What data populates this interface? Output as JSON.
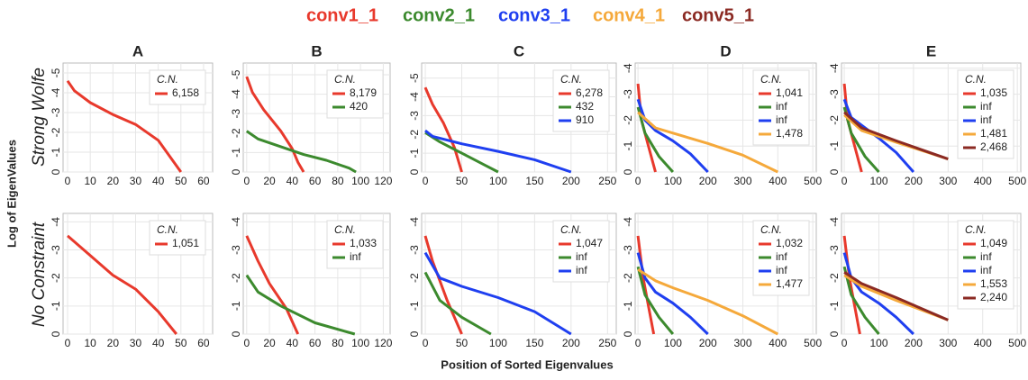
{
  "figure": {
    "legend": [
      {
        "name": "conv1_1",
        "color": "#e8392c"
      },
      {
        "name": "conv2_1",
        "color": "#3c8a2e"
      },
      {
        "name": "conv3_1",
        "color": "#1f3ff0"
      },
      {
        "name": "conv4_1",
        "color": "#f5a93b"
      },
      {
        "name": "conv5_1",
        "color": "#8b2a23"
      }
    ],
    "rows": [
      "Strong Wolfe",
      "No Constraint"
    ],
    "ylabel": "Log of EigenValues",
    "xlabel": "Position of Sorted Eigenvalues"
  },
  "chart_data": [
    {
      "type": "line",
      "title": "A",
      "grid": true,
      "legend_title": "C.N.",
      "xlim": [
        -2,
        64
      ],
      "ylim": [
        0,
        -5.5
      ],
      "xticks": [
        0,
        10,
        20,
        30,
        40,
        50,
        60
      ],
      "yticks": [
        0,
        -1,
        -2,
        -3,
        -4,
        -5
      ],
      "series": [
        {
          "color": "#e8392c",
          "label": "6,158",
          "x": [
            0,
            3,
            10,
            20,
            30,
            40,
            45,
            50
          ],
          "values": [
            -4.6,
            -4.1,
            -3.5,
            -2.9,
            -2.4,
            -1.6,
            -0.8,
            0
          ]
        }
      ]
    },
    {
      "type": "line",
      "title": "B",
      "grid": true,
      "legend_title": "C.N.",
      "xlim": [
        -3,
        126
      ],
      "ylim": [
        0,
        -5.6
      ],
      "xticks": [
        0,
        20,
        40,
        60,
        80,
        100,
        120
      ],
      "yticks": [
        0,
        -1,
        -2,
        -3,
        -4,
        -5
      ],
      "series": [
        {
          "color": "#e8392c",
          "label": "8,179",
          "x": [
            0,
            5,
            15,
            30,
            40,
            45,
            50
          ],
          "values": [
            -4.9,
            -4.1,
            -3.2,
            -2.1,
            -1.2,
            -0.5,
            0
          ]
        },
        {
          "color": "#3c8a2e",
          "label": "420",
          "x": [
            0,
            10,
            30,
            50,
            70,
            90,
            96
          ],
          "values": [
            -2.1,
            -1.7,
            -1.3,
            -0.9,
            -0.6,
            -0.2,
            0
          ]
        }
      ]
    },
    {
      "type": "line",
      "title": "C",
      "grid": true,
      "legend_title": "C.N.",
      "xlim": [
        -5,
        262
      ],
      "ylim": [
        0,
        -5.8
      ],
      "xticks": [
        0,
        50,
        100,
        150,
        200,
        250
      ],
      "yticks": [
        0,
        -1,
        -2,
        -3,
        -4,
        -5
      ],
      "series": [
        {
          "color": "#e8392c",
          "label": "6,278",
          "x": [
            0,
            10,
            25,
            40,
            50
          ],
          "values": [
            -4.5,
            -3.6,
            -2.6,
            -1.3,
            0
          ]
        },
        {
          "color": "#3c8a2e",
          "label": "432",
          "x": [
            0,
            20,
            50,
            80,
            100
          ],
          "values": [
            -2.1,
            -1.6,
            -1.0,
            -0.4,
            0
          ]
        },
        {
          "color": "#1f3ff0",
          "label": "910",
          "x": [
            0,
            10,
            50,
            100,
            150,
            200
          ],
          "values": [
            -2.2,
            -1.9,
            -1.5,
            -1.1,
            -0.65,
            0
          ]
        }
      ]
    },
    {
      "type": "line",
      "title": "D",
      "grid": true,
      "legend_title": "C.N.",
      "xlim": [
        -8,
        510
      ],
      "ylim": [
        0,
        -4.2
      ],
      "xticks": [
        0,
        100,
        200,
        300,
        400,
        500
      ],
      "yticks": [
        0,
        -1,
        -2,
        -3,
        -4
      ],
      "series": [
        {
          "color": "#e8392c",
          "label": "1,041",
          "x": [
            0,
            10,
            30,
            50
          ],
          "values": [
            -3.4,
            -2.0,
            -1.0,
            0
          ]
        },
        {
          "color": "#3c8a2e",
          "label": "inf",
          "x": [
            0,
            20,
            60,
            100
          ],
          "values": [
            -2.5,
            -1.5,
            -0.6,
            0
          ]
        },
        {
          "color": "#1f3ff0",
          "label": "inf",
          "x": [
            0,
            20,
            50,
            100,
            150,
            200
          ],
          "values": [
            -2.8,
            -2.0,
            -1.6,
            -1.2,
            -0.7,
            0
          ]
        },
        {
          "color": "#f5a93b",
          "label": "1,478",
          "x": [
            0,
            50,
            100,
            200,
            300,
            400
          ],
          "values": [
            -2.3,
            -1.7,
            -1.5,
            -1.1,
            -0.65,
            0
          ]
        }
      ]
    },
    {
      "type": "line",
      "title": "E",
      "grid": true,
      "legend_title": "C.N.",
      "xlim": [
        -8,
        510
      ],
      "ylim": [
        0,
        -4.2
      ],
      "xticks": [
        0,
        100,
        200,
        300,
        400,
        500
      ],
      "yticks": [
        0,
        -1,
        -2,
        -3,
        -4
      ],
      "series": [
        {
          "color": "#e8392c",
          "label": "1,035",
          "x": [
            0,
            10,
            30,
            50
          ],
          "values": [
            -3.4,
            -2.0,
            -1.0,
            0
          ]
        },
        {
          "color": "#3c8a2e",
          "label": "inf",
          "x": [
            0,
            20,
            60,
            100
          ],
          "values": [
            -2.5,
            -1.5,
            -0.6,
            0
          ]
        },
        {
          "color": "#1f3ff0",
          "label": "inf",
          "x": [
            0,
            20,
            100,
            150,
            200
          ],
          "values": [
            -2.8,
            -2.1,
            -1.3,
            -0.75,
            0
          ]
        },
        {
          "color": "#f5a93b",
          "label": "1,481",
          "x": [
            0,
            50,
            150,
            300
          ],
          "values": [
            -2.2,
            -1.6,
            -1.15,
            -0.5
          ]
        },
        {
          "color": "#8b2a23",
          "label": "2,468",
          "x": [
            0,
            50,
            150,
            300
          ],
          "values": [
            -2.3,
            -1.7,
            -1.2,
            -0.5
          ]
        }
      ]
    },
    {
      "type": "line",
      "grid": true,
      "legend_title": "C.N.",
      "xlim": [
        -2,
        64
      ],
      "ylim": [
        0,
        -4.3
      ],
      "xticks": [
        0,
        10,
        20,
        30,
        40,
        50,
        60
      ],
      "yticks": [
        0,
        -1,
        -2,
        -3,
        -4
      ],
      "series": [
        {
          "color": "#e8392c",
          "label": "1,051",
          "x": [
            0,
            10,
            20,
            30,
            40,
            48
          ],
          "values": [
            -3.5,
            -2.8,
            -2.1,
            -1.6,
            -0.8,
            0
          ]
        }
      ]
    },
    {
      "type": "line",
      "grid": true,
      "legend_title": "C.N.",
      "xlim": [
        -3,
        126
      ],
      "ylim": [
        0,
        -4.3
      ],
      "xticks": [
        0,
        20,
        40,
        60,
        80,
        100,
        120
      ],
      "yticks": [
        0,
        -1,
        -2,
        -3,
        -4
      ],
      "series": [
        {
          "color": "#e8392c",
          "label": "1,033",
          "x": [
            0,
            10,
            20,
            35,
            45
          ],
          "values": [
            -3.5,
            -2.6,
            -1.8,
            -0.9,
            0
          ]
        },
        {
          "color": "#3c8a2e",
          "label": "inf",
          "x": [
            0,
            10,
            30,
            60,
            95
          ],
          "values": [
            -2.1,
            -1.5,
            -1.0,
            -0.4,
            0
          ]
        }
      ]
    },
    {
      "type": "line",
      "grid": true,
      "legend_title": "C.N.",
      "xlim": [
        -5,
        262
      ],
      "ylim": [
        0,
        -4.3
      ],
      "xticks": [
        0,
        50,
        100,
        150,
        200,
        250
      ],
      "yticks": [
        0,
        -1,
        -2,
        -3,
        -4
      ],
      "series": [
        {
          "color": "#e8392c",
          "label": "1,047",
          "x": [
            0,
            10,
            30,
            50
          ],
          "values": [
            -3.5,
            -2.6,
            -1.2,
            0
          ]
        },
        {
          "color": "#3c8a2e",
          "label": "inf",
          "x": [
            0,
            20,
            50,
            90
          ],
          "values": [
            -2.2,
            -1.2,
            -0.6,
            0
          ]
        },
        {
          "color": "#1f3ff0",
          "label": "inf",
          "x": [
            0,
            20,
            50,
            100,
            150,
            200
          ],
          "values": [
            -2.9,
            -2.0,
            -1.7,
            -1.3,
            -0.8,
            0
          ]
        }
      ]
    },
    {
      "type": "line",
      "grid": true,
      "legend_title": "C.N.",
      "xlim": [
        -8,
        510
      ],
      "ylim": [
        0,
        -4.3
      ],
      "xticks": [
        0,
        100,
        200,
        300,
        400,
        500
      ],
      "yticks": [
        0,
        -1,
        -2,
        -3,
        -4
      ],
      "series": [
        {
          "color": "#e8392c",
          "label": "1,032",
          "x": [
            0,
            15,
            30,
            45
          ],
          "values": [
            -3.5,
            -2.0,
            -1.0,
            0
          ]
        },
        {
          "color": "#3c8a2e",
          "label": "inf",
          "x": [
            0,
            20,
            60,
            100
          ],
          "values": [
            -2.4,
            -1.4,
            -0.6,
            0
          ]
        },
        {
          "color": "#1f3ff0",
          "label": "inf",
          "x": [
            0,
            20,
            50,
            100,
            150,
            200
          ],
          "values": [
            -2.9,
            -2.0,
            -1.5,
            -1.1,
            -0.6,
            0
          ]
        },
        {
          "color": "#f5a93b",
          "label": "1,477",
          "x": [
            0,
            50,
            100,
            200,
            300,
            400
          ],
          "values": [
            -2.3,
            -1.9,
            -1.65,
            -1.2,
            -0.65,
            0
          ]
        }
      ]
    },
    {
      "type": "line",
      "grid": true,
      "legend_title": "C.N.",
      "xlim": [
        -8,
        510
      ],
      "ylim": [
        0,
        -4.3
      ],
      "xticks": [
        0,
        100,
        200,
        300,
        400,
        500
      ],
      "yticks": [
        0,
        -1,
        -2,
        -3,
        -4
      ],
      "series": [
        {
          "color": "#e8392c",
          "label": "1,049",
          "x": [
            0,
            15,
            30,
            45
          ],
          "values": [
            -3.5,
            -2.0,
            -1.0,
            0
          ]
        },
        {
          "color": "#3c8a2e",
          "label": "inf",
          "x": [
            0,
            20,
            60,
            100
          ],
          "values": [
            -2.4,
            -1.4,
            -0.6,
            0
          ]
        },
        {
          "color": "#1f3ff0",
          "label": "inf",
          "x": [
            0,
            20,
            50,
            100,
            150,
            200
          ],
          "values": [
            -2.9,
            -2.0,
            -1.5,
            -1.1,
            -0.6,
            0
          ]
        },
        {
          "color": "#f5a93b",
          "label": "1,553",
          "x": [
            0,
            50,
            150,
            300
          ],
          "values": [
            -2.1,
            -1.7,
            -1.2,
            -0.5
          ]
        },
        {
          "color": "#8b2a23",
          "label": "2,240",
          "x": [
            0,
            50,
            150,
            300
          ],
          "values": [
            -2.2,
            -1.8,
            -1.3,
            -0.5
          ]
        }
      ]
    }
  ]
}
